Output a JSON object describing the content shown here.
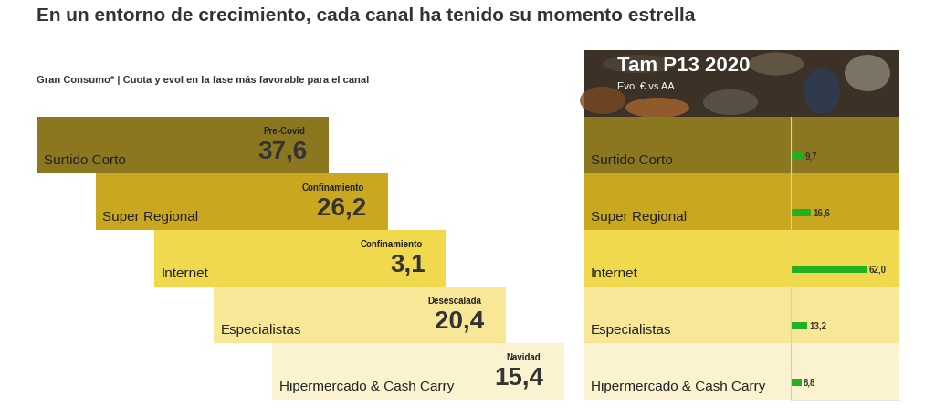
{
  "title": "En un entorno de crecimiento, cada canal ha tenido su momento estrella",
  "chart_data": [
    {
      "type": "tiles",
      "title": "Gran Consumo* | Cuota y evol en la fase más favorable para el canal",
      "categories": [
        "Surtido Corto",
        "Super Regional",
        "Internet",
        "Especialistas",
        "Hipermercado & Cash Carry"
      ],
      "phases": [
        "Pre-Covid",
        "Confinamiento",
        "Confinamiento",
        "Desescalada",
        "Navidad"
      ],
      "values": [
        37.6,
        26.2,
        3.1,
        20.4,
        15.4
      ],
      "value_labels": [
        "37,6",
        "26,2",
        "3,1",
        "20,4",
        "15,4"
      ],
      "colors": [
        "#8c7721",
        "#c9a71f",
        "#f1d94e",
        "#f7e797",
        "#fbf2cf"
      ],
      "data_labels": true
    },
    {
      "type": "bar",
      "orientation": "horizontal",
      "title": "Tam P13 2020",
      "subtitle": "Evol € vs AA",
      "categories": [
        "Surtido Corto",
        "Super Regional",
        "Internet",
        "Especialistas",
        "Hipermercado & Cash Carry"
      ],
      "values": [
        9.7,
        16.6,
        62.0,
        13.2,
        8.8
      ],
      "value_labels": [
        "9,7",
        "16,6",
        "62,0",
        "13,2",
        "8,8"
      ],
      "color": "#22b022",
      "data_labels": true,
      "tick_labels": false,
      "xlim": [
        0,
        88
      ],
      "xticks": []
    }
  ]
}
